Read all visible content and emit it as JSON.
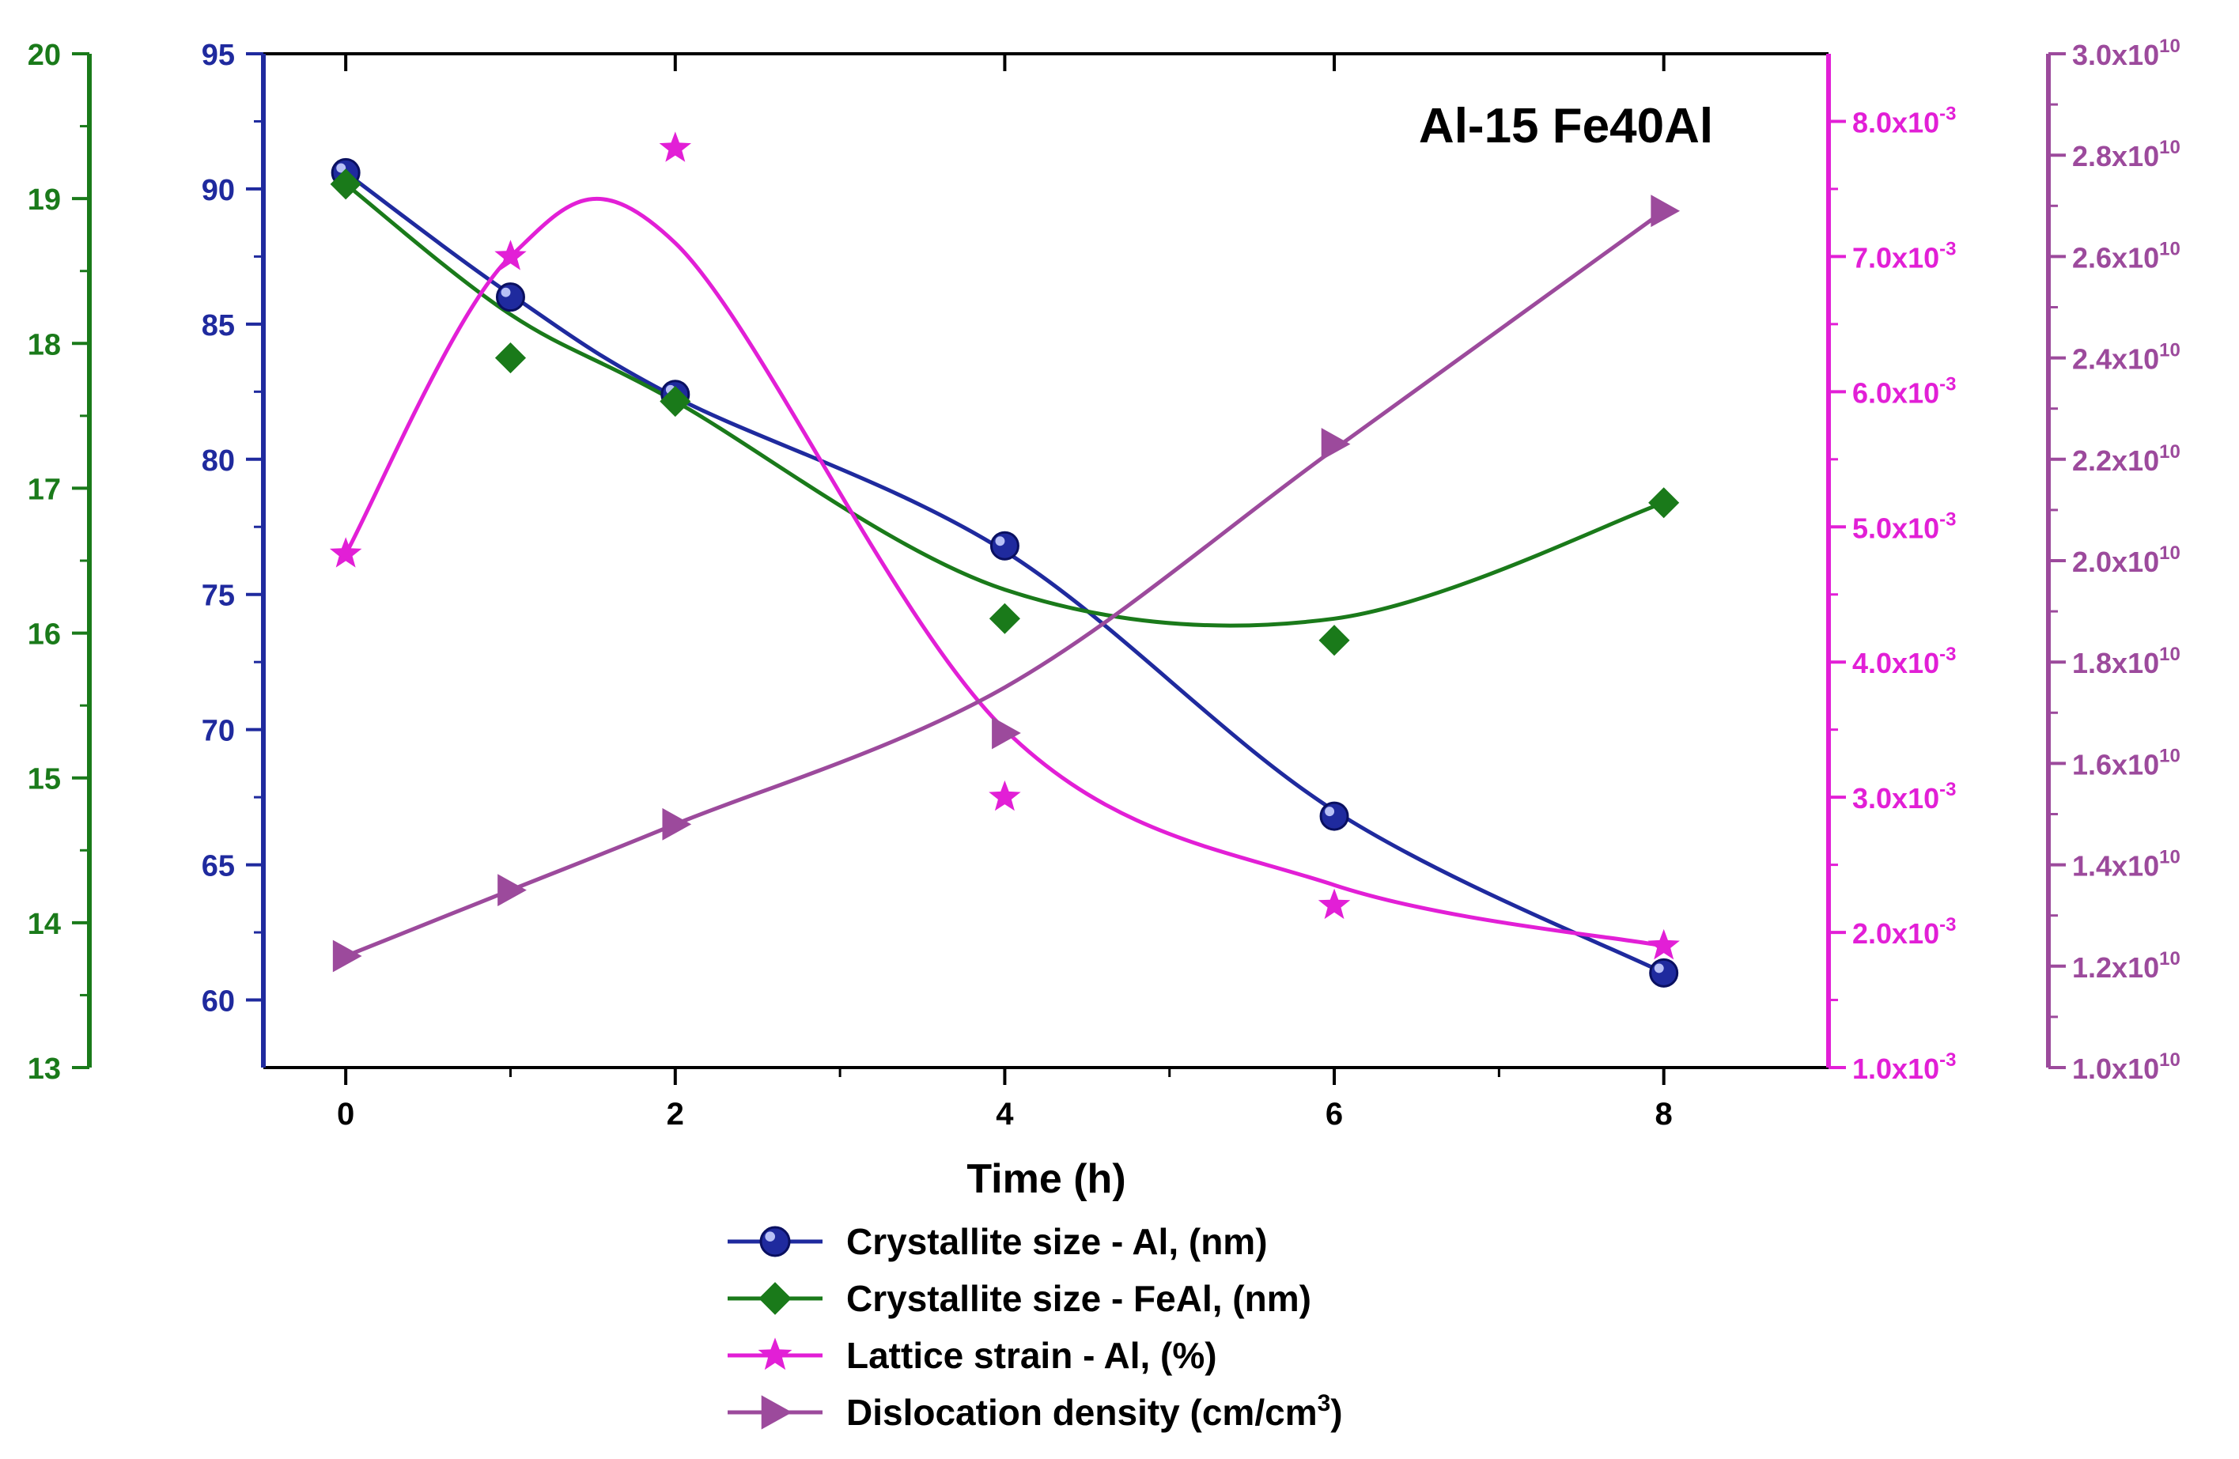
{
  "chart_data": {
    "type": "line",
    "annotation": "Al-15 Fe40Al",
    "xlabel": "Time (h)",
    "x": [
      0,
      1,
      2,
      4,
      6,
      8
    ],
    "xlim": [
      -0.5,
      9
    ],
    "xticks": [
      0,
      2,
      4,
      6,
      8
    ],
    "xtick_labels": [
      "0",
      "2",
      "4",
      "6",
      "8"
    ],
    "axes": {
      "blue": {
        "color": "#1f2a9e",
        "lim": [
          57.5,
          95
        ],
        "ticks": [
          60,
          65,
          70,
          75,
          80,
          85,
          90,
          95
        ],
        "tick_labels": [
          "60",
          "65",
          "70",
          "75",
          "80",
          "85",
          "90",
          "95"
        ]
      },
      "green": {
        "color": "#1a7a1a",
        "lim": [
          13,
          20
        ],
        "ticks": [
          13,
          14,
          15,
          16,
          17,
          18,
          19,
          20
        ],
        "tick_labels": [
          "13",
          "14",
          "15",
          "16",
          "17",
          "18",
          "19",
          "20"
        ]
      },
      "magenta": {
        "color": "#e21fd6",
        "lim": [
          0.001,
          0.0085
        ],
        "ticks": [
          0.001,
          0.002,
          0.003,
          0.004,
          0.005,
          0.006,
          0.007,
          0.008
        ],
        "tick_mantissas": [
          "1.0",
          "2.0",
          "3.0",
          "4.0",
          "5.0",
          "6.0",
          "7.0",
          "8.0"
        ],
        "tick_base": "x10",
        "tick_exp": "-3"
      },
      "purple": {
        "color": "#9c4a9c",
        "lim": [
          10000000000.0,
          30000000000.0
        ],
        "ticks": [
          10000000000.0,
          12000000000.0,
          14000000000.0,
          16000000000.0,
          18000000000.0,
          20000000000.0,
          22000000000.0,
          24000000000.0,
          26000000000.0,
          28000000000.0,
          30000000000.0
        ],
        "tick_mantissas": [
          "1.0",
          "1.2",
          "1.4",
          "1.6",
          "1.8",
          "2.0",
          "2.2",
          "2.4",
          "2.6",
          "2.8",
          "3.0"
        ],
        "tick_base": "x10",
        "tick_exp": "10"
      }
    },
    "series": [
      {
        "name": "Crystallite size - Al, (nm)",
        "axis": "blue",
        "color": "#1f2a9e",
        "marker": "sphere",
        "values": [
          90.6,
          86.0,
          82.4,
          76.8,
          66.8,
          61.0
        ],
        "fit": [
          90.6,
          86.1,
          82.3,
          76.6,
          67.0,
          61.0
        ]
      },
      {
        "name": "Crystallite size - FeAl, (nm)",
        "axis": "green",
        "color": "#1a7a1a",
        "marker": "diamond",
        "values": [
          19.1,
          17.9,
          17.6,
          16.1,
          15.95,
          16.9
        ],
        "fit": [
          19.1,
          18.2,
          17.6,
          16.3,
          16.1,
          16.9
        ]
      },
      {
        "name": "Lattice strain - Al, (%)",
        "axis": "magenta",
        "color": "#e21fd6",
        "marker": "star",
        "values": [
          0.0048,
          0.007,
          0.0078,
          0.003,
          0.0022,
          0.0019
        ],
        "fit": [
          0.0048,
          0.007,
          0.0071,
          0.0035,
          0.00235,
          0.0019
        ]
      },
      {
        "name": "Dislocation density (cm/cm",
        "name_sup": "3",
        "name_suffix": ")",
        "axis": "purple",
        "color": "#9c4a9c",
        "marker": "triangle-right",
        "values": [
          12200000000.0,
          13500000000.0,
          14800000000.0,
          16600000000.0,
          22300000000.0,
          26900000000.0
        ],
        "fit": [
          12200000000.0,
          13500000000.0,
          14800000000.0,
          17500000000.0,
          22200000000.0,
          26900000000.0
        ]
      }
    ],
    "legend": "bottom-center"
  }
}
